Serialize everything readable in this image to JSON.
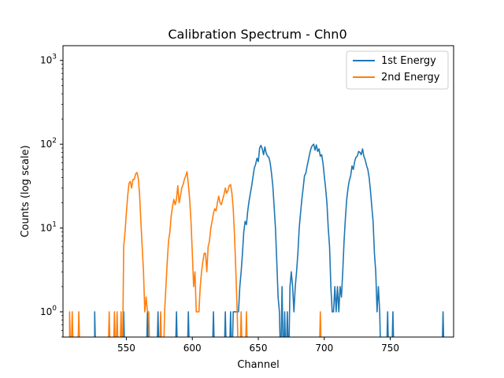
{
  "chart_data": {
    "type": "line",
    "title": "Calibration Spectrum - Chn0",
    "xlabel": "Channel",
    "ylabel": "Counts (log scale)",
    "xlim": [
      502,
      798
    ],
    "ylim": [
      0.5,
      1500
    ],
    "yscale": "log",
    "grid": false,
    "legend_position": "top-right",
    "x_ticks": [
      550,
      600,
      650,
      700,
      750
    ],
    "x_tick_labels": [
      "550",
      "600",
      "650",
      "700",
      "750"
    ],
    "y_ticks": [
      1,
      10,
      100,
      1000
    ],
    "y_tick_labels": [
      "10^0",
      "10^1",
      "10^2",
      "10^3"
    ],
    "series": [
      {
        "name": "1st Energy",
        "color": "#1f77b4",
        "points": [
          [
            526,
            1
          ],
          [
            548,
            1
          ],
          [
            566,
            1
          ],
          [
            574,
            1
          ],
          [
            588,
            1
          ],
          [
            597,
            1
          ],
          [
            616,
            1
          ],
          [
            625,
            1
          ],
          [
            629,
            1
          ],
          [
            631,
            1
          ],
          [
            632,
            1
          ],
          [
            633,
            1
          ],
          [
            634,
            1
          ],
          [
            635,
            1
          ],
          [
            636,
            2
          ],
          [
            637,
            3
          ],
          [
            638,
            5
          ],
          [
            639,
            9
          ],
          [
            640,
            12
          ],
          [
            641,
            11
          ],
          [
            642,
            16
          ],
          [
            643,
            21
          ],
          [
            644,
            26
          ],
          [
            645,
            32
          ],
          [
            646,
            41
          ],
          [
            647,
            52
          ],
          [
            648,
            58
          ],
          [
            649,
            68
          ],
          [
            650,
            62
          ],
          [
            651,
            90
          ],
          [
            652,
            97
          ],
          [
            653,
            88
          ],
          [
            654,
            75
          ],
          [
            655,
            93
          ],
          [
            656,
            78
          ],
          [
            657,
            72
          ],
          [
            658,
            70
          ],
          [
            659,
            60
          ],
          [
            660,
            45
          ],
          [
            661,
            32
          ],
          [
            662,
            18
          ],
          [
            663,
            10
          ],
          [
            664,
            4
          ],
          [
            665,
            1.5
          ],
          [
            666,
            1
          ],
          [
            668,
            2
          ],
          [
            670,
            1
          ],
          [
            672,
            1
          ],
          [
            674,
            2
          ],
          [
            675,
            3
          ],
          [
            676,
            2
          ],
          [
            677,
            1
          ],
          [
            678,
            2
          ],
          [
            679,
            3
          ],
          [
            680,
            5
          ],
          [
            681,
            10
          ],
          [
            682,
            15
          ],
          [
            683,
            22
          ],
          [
            684,
            30
          ],
          [
            685,
            42
          ],
          [
            686,
            45
          ],
          [
            687,
            55
          ],
          [
            688,
            65
          ],
          [
            689,
            78
          ],
          [
            690,
            90
          ],
          [
            691,
            97
          ],
          [
            692,
            100
          ],
          [
            693,
            85
          ],
          [
            694,
            98
          ],
          [
            695,
            82
          ],
          [
            696,
            88
          ],
          [
            697,
            72
          ],
          [
            698,
            75
          ],
          [
            699,
            60
          ],
          [
            700,
            42
          ],
          [
            701,
            30
          ],
          [
            702,
            20
          ],
          [
            703,
            10
          ],
          [
            704,
            6
          ],
          [
            705,
            2
          ],
          [
            706,
            1
          ],
          [
            707,
            1
          ],
          [
            708,
            2
          ],
          [
            709,
            1
          ],
          [
            710,
            2
          ],
          [
            711,
            1
          ],
          [
            712,
            2
          ],
          [
            713,
            1.5
          ],
          [
            714,
            3
          ],
          [
            715,
            7
          ],
          [
            716,
            13
          ],
          [
            717,
            22
          ],
          [
            718,
            30
          ],
          [
            719,
            37
          ],
          [
            720,
            42
          ],
          [
            721,
            55
          ],
          [
            722,
            50
          ],
          [
            723,
            62
          ],
          [
            724,
            70
          ],
          [
            725,
            72
          ],
          [
            726,
            82
          ],
          [
            727,
            80
          ],
          [
            728,
            75
          ],
          [
            729,
            88
          ],
          [
            730,
            72
          ],
          [
            731,
            65
          ],
          [
            732,
            56
          ],
          [
            733,
            50
          ],
          [
            734,
            40
          ],
          [
            735,
            28
          ],
          [
            736,
            18
          ],
          [
            737,
            12
          ],
          [
            738,
            5
          ],
          [
            739,
            3
          ],
          [
            740,
            1
          ],
          [
            741,
            2
          ],
          [
            742,
            1
          ],
          [
            748,
            1
          ],
          [
            752,
            1
          ],
          [
            790,
            1
          ]
        ]
      },
      {
        "name": "2nd Energy",
        "color": "#ff7f0e",
        "points": [
          [
            507,
            1
          ],
          [
            509,
            1
          ],
          [
            514,
            1
          ],
          [
            537,
            1
          ],
          [
            541,
            1
          ],
          [
            543,
            1
          ],
          [
            546,
            1
          ],
          [
            548,
            6
          ],
          [
            549,
            9
          ],
          [
            550,
            15
          ],
          [
            551,
            24
          ],
          [
            552,
            34
          ],
          [
            553,
            36
          ],
          [
            554,
            30
          ],
          [
            555,
            38
          ],
          [
            556,
            38
          ],
          [
            557,
            44
          ],
          [
            558,
            46
          ],
          [
            559,
            40
          ],
          [
            560,
            26
          ],
          [
            561,
            12
          ],
          [
            562,
            6
          ],
          [
            563,
            3
          ],
          [
            564,
            1
          ],
          [
            565,
            1.5
          ],
          [
            566,
            1
          ],
          [
            567,
            1
          ],
          [
            576,
            1
          ],
          [
            579,
            1
          ],
          [
            580,
            2
          ],
          [
            581,
            4
          ],
          [
            582,
            7
          ],
          [
            583,
            9
          ],
          [
            584,
            14
          ],
          [
            585,
            18
          ],
          [
            586,
            22
          ],
          [
            587,
            19
          ],
          [
            588,
            22
          ],
          [
            589,
            32
          ],
          [
            590,
            20
          ],
          [
            591,
            24
          ],
          [
            592,
            30
          ],
          [
            593,
            33
          ],
          [
            594,
            38
          ],
          [
            595,
            42
          ],
          [
            596,
            47
          ],
          [
            597,
            33
          ],
          [
            598,
            22
          ],
          [
            599,
            12
          ],
          [
            600,
            5
          ],
          [
            601,
            2
          ],
          [
            602,
            3
          ],
          [
            603,
            1
          ],
          [
            604,
            1
          ],
          [
            605,
            1
          ],
          [
            606,
            2
          ],
          [
            607,
            3
          ],
          [
            608,
            4
          ],
          [
            609,
            5
          ],
          [
            610,
            5
          ],
          [
            611,
            3
          ],
          [
            612,
            6
          ],
          [
            613,
            7
          ],
          [
            614,
            10
          ],
          [
            615,
            12
          ],
          [
            616,
            15
          ],
          [
            617,
            17
          ],
          [
            618,
            16
          ],
          [
            619,
            20
          ],
          [
            620,
            24
          ],
          [
            621,
            20
          ],
          [
            622,
            19
          ],
          [
            623,
            22
          ],
          [
            624,
            25
          ],
          [
            625,
            30
          ],
          [
            626,
            26
          ],
          [
            627,
            28
          ],
          [
            628,
            32
          ],
          [
            629,
            33
          ],
          [
            630,
            26
          ],
          [
            631,
            17
          ],
          [
            632,
            8
          ],
          [
            633,
            3
          ],
          [
            634,
            1
          ],
          [
            637,
            1
          ],
          [
            641,
            1
          ],
          [
            697,
            1
          ]
        ]
      }
    ]
  }
}
